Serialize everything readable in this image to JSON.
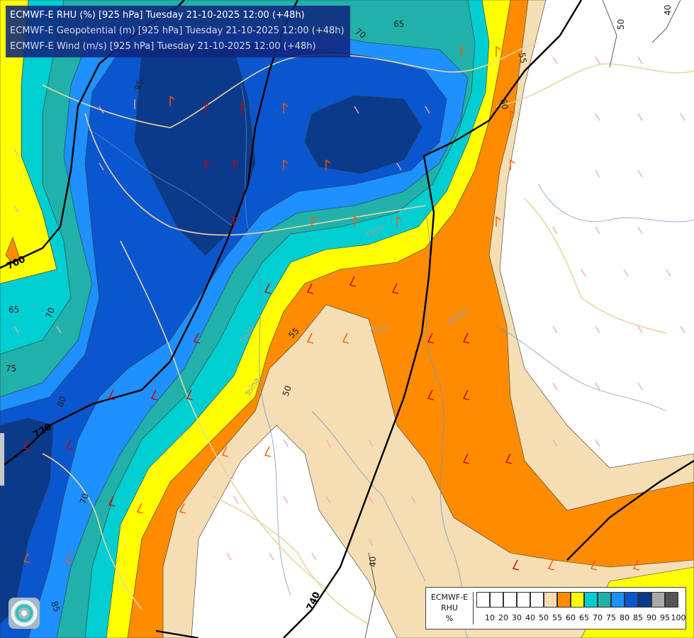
{
  "header": {
    "line1": "ECMWF-E RHU (%) [925 hPa] Tuesday 21-10-2025 12:00 (+48h)",
    "line2": "ECMWF-E Geopotential (m) [925 hPa] Tuesday 21-10-2025 12:00 (+48h)",
    "line3": "ECMWF-E Wind (m/s) [925 hPa] Tuesday 21-10-2025 12:00 (+48h)"
  },
  "legend": {
    "model": "ECMWF-E",
    "variable": "RHU",
    "unit": "%",
    "thresholds": [
      "10",
      "20",
      "30",
      "40",
      "50",
      "55",
      "60",
      "65",
      "70",
      "75",
      "80",
      "85",
      "90",
      "95",
      "100"
    ],
    "colors": [
      "#ffffff",
      "#ffffff",
      "#ffffff",
      "#ffffff",
      "#ffffff",
      "#f5deb3",
      "#ff8c00",
      "#ffff00",
      "#00ced1",
      "#20b2aa",
      "#1e90ff",
      "#0a56cf",
      "#0b3a8a",
      "#a9a9a9",
      "#555555"
    ]
  },
  "map": {
    "humidity_labels": [
      "65",
      "70",
      "70",
      "75",
      "80",
      "85",
      "85",
      "55",
      "50",
      "50",
      "55",
      "60",
      "40",
      "40",
      "65",
      "70"
    ],
    "geopotential_labels": [
      "700",
      "720",
      "740"
    ],
    "place_labels": [
      "Tisza",
      "Pest",
      "Békés",
      "Tolna",
      "Fejér"
    ]
  },
  "colors": {
    "rhu_lt50": "#ffffff",
    "rhu_55": "#f5deb3",
    "rhu_60": "#ff8c00",
    "rhu_65": "#ffff00",
    "rhu_70": "#00ced1",
    "rhu_75": "#20b2aa",
    "rhu_80": "#1e90ff",
    "rhu_85": "#0a56cf",
    "rhu_90": "#0b3a8a",
    "geopotential_line": "#000000",
    "borders": "#e8d5a0",
    "rivers": "#6b8fc7"
  },
  "icons": {
    "logo": "ecmwf-swirl-logo",
    "wind_barb": "wind-barb-icon"
  }
}
